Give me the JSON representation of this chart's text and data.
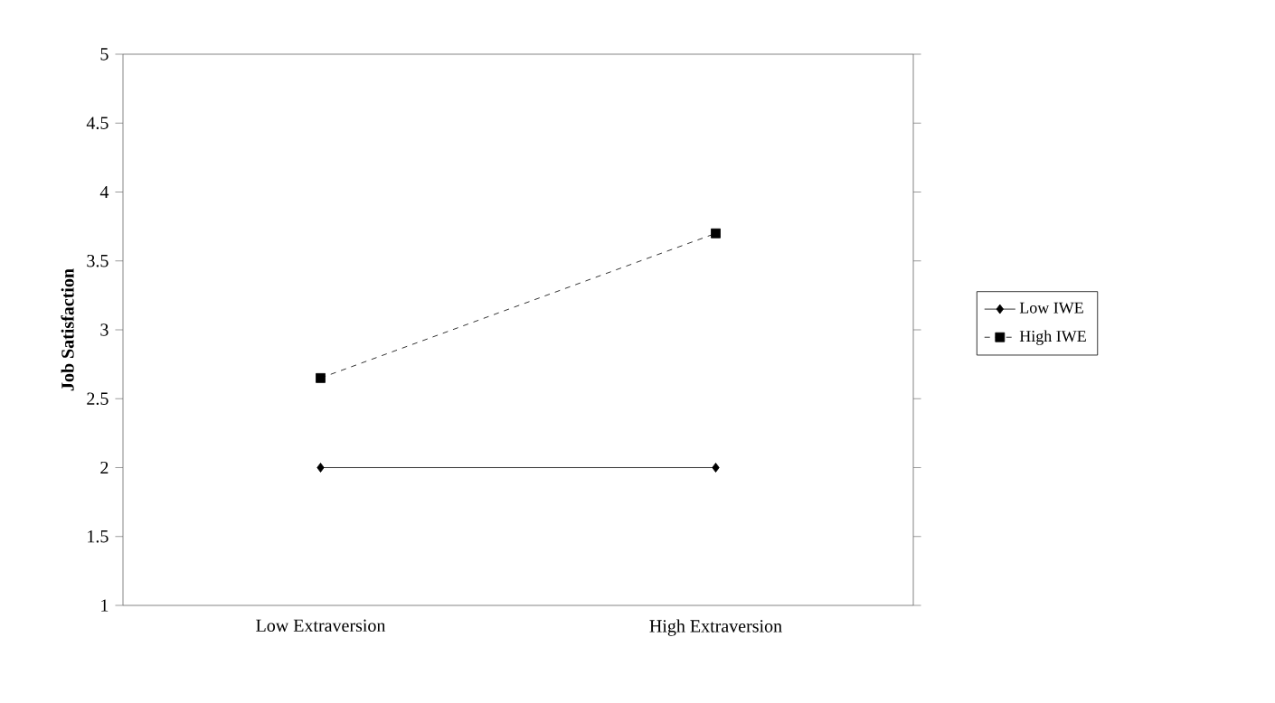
{
  "chart_data": {
    "type": "line",
    "ylabel": "Job Satisfaction",
    "categories": [
      "Low Extraversion",
      "High Extraversion"
    ],
    "series": [
      {
        "name": "Low IWE",
        "color": "#000000",
        "values": [
          2,
          2
        ],
        "marker": "diamond",
        "line_style": "solid"
      },
      {
        "name": "High IWE",
        "color": "#000000",
        "values": [
          2.65,
          3.7
        ],
        "marker": "square",
        "line_style": "dashed"
      }
    ],
    "ylim": [
      1,
      5
    ],
    "yticks": [
      1,
      1.5,
      2,
      2.5,
      3,
      3.5,
      4,
      4.5,
      5
    ],
    "grid": false,
    "legend": "right"
  }
}
